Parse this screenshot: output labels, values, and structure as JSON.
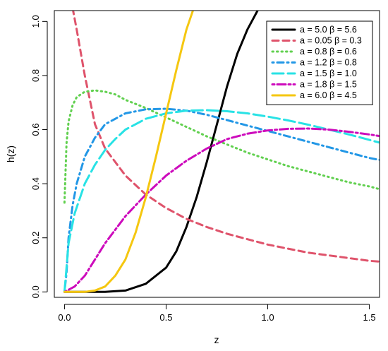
{
  "chart_data": {
    "type": "line",
    "xlabel": "z",
    "ylabel": "h(z)",
    "xlim": [
      -0.05,
      1.55
    ],
    "ylim": [
      0,
      1.0
    ],
    "x_ticks": [
      "0.0",
      "0.5",
      "1.0",
      "1.5"
    ],
    "y_ticks": [
      "0.0",
      "0.2",
      "0.4",
      "0.6",
      "0.8",
      "1.0"
    ],
    "grid": false,
    "legend_position": "top-right",
    "series": [
      {
        "name": "a = 5.0  β = 5.6",
        "color": "#000000",
        "dash": "solid",
        "x": [
          0.0,
          0.1,
          0.2,
          0.3,
          0.4,
          0.5,
          0.55,
          0.6,
          0.65,
          0.7,
          0.75,
          0.8,
          0.85,
          0.9,
          0.95,
          1.0
        ],
        "y": [
          0.0,
          0.0,
          0.0,
          0.005,
          0.03,
          0.09,
          0.15,
          0.24,
          0.35,
          0.48,
          0.62,
          0.76,
          0.88,
          0.97,
          1.04,
          1.1
        ]
      },
      {
        "name": "a = 0.05  β = 0.3",
        "color": "#df536b",
        "dash": "dashed",
        "x": [
          0.04,
          0.06,
          0.1,
          0.15,
          0.2,
          0.3,
          0.4,
          0.5,
          0.6,
          0.7,
          0.8,
          0.9,
          1.0,
          1.1,
          1.2,
          1.3,
          1.4,
          1.5,
          1.55
        ],
        "y": [
          1.05,
          0.97,
          0.8,
          0.62,
          0.53,
          0.43,
          0.36,
          0.31,
          0.27,
          0.24,
          0.215,
          0.195,
          0.175,
          0.16,
          0.145,
          0.135,
          0.125,
          0.115,
          0.112
        ]
      },
      {
        "name": "a = 0.8  β = 0.6",
        "color": "#61d04f",
        "dash": "dotted",
        "x": [
          0.0,
          0.01,
          0.02,
          0.04,
          0.06,
          0.1,
          0.15,
          0.2,
          0.25,
          0.3,
          0.4,
          0.5,
          0.6,
          0.7,
          0.8,
          0.9,
          1.0,
          1.1,
          1.2,
          1.3,
          1.4,
          1.5,
          1.55
        ],
        "y": [
          0.33,
          0.55,
          0.63,
          0.69,
          0.72,
          0.74,
          0.745,
          0.74,
          0.73,
          0.71,
          0.68,
          0.645,
          0.61,
          0.575,
          0.545,
          0.515,
          0.49,
          0.465,
          0.445,
          0.425,
          0.405,
          0.39,
          0.38
        ]
      },
      {
        "name": "a = 1.2  β = 0.8",
        "color": "#2297e6",
        "dash": "dotdash",
        "x": [
          0.0,
          0.01,
          0.02,
          0.04,
          0.06,
          0.1,
          0.15,
          0.2,
          0.3,
          0.4,
          0.5,
          0.6,
          0.7,
          0.8,
          0.9,
          1.0,
          1.1,
          1.2,
          1.3,
          1.4,
          1.5,
          1.55
        ],
        "y": [
          0.0,
          0.07,
          0.2,
          0.32,
          0.4,
          0.5,
          0.57,
          0.62,
          0.66,
          0.675,
          0.677,
          0.67,
          0.655,
          0.635,
          0.615,
          0.595,
          0.575,
          0.555,
          0.535,
          0.515,
          0.495,
          0.488
        ]
      },
      {
        "name": "a = 1.5  β = 1.0",
        "color": "#28e2e5",
        "dash": "longdash",
        "x": [
          0.0,
          0.02,
          0.05,
          0.1,
          0.15,
          0.2,
          0.25,
          0.3,
          0.4,
          0.5,
          0.6,
          0.7,
          0.8,
          0.9,
          1.0,
          1.1,
          1.2,
          1.3,
          1.4,
          1.5,
          1.55
        ],
        "y": [
          0.0,
          0.18,
          0.29,
          0.4,
          0.47,
          0.525,
          0.565,
          0.6,
          0.64,
          0.66,
          0.67,
          0.672,
          0.668,
          0.66,
          0.648,
          0.634,
          0.618,
          0.6,
          0.582,
          0.562,
          0.552
        ]
      },
      {
        "name": "a = 1.8  β = 1.5",
        "color": "#cd0bbc",
        "dash": "twodash",
        "x": [
          0.0,
          0.05,
          0.1,
          0.15,
          0.2,
          0.3,
          0.4,
          0.5,
          0.6,
          0.7,
          0.8,
          0.9,
          1.0,
          1.1,
          1.2,
          1.3,
          1.4,
          1.5,
          1.55
        ],
        "y": [
          0.0,
          0.02,
          0.06,
          0.12,
          0.18,
          0.28,
          0.36,
          0.43,
          0.485,
          0.53,
          0.565,
          0.585,
          0.597,
          0.603,
          0.604,
          0.6,
          0.592,
          0.582,
          0.576
        ]
      },
      {
        "name": "a = 6.0  β = 4.5",
        "color": "#f5c710",
        "dash": "solid",
        "x": [
          0.0,
          0.1,
          0.15,
          0.2,
          0.25,
          0.3,
          0.35,
          0.4,
          0.45,
          0.5,
          0.55,
          0.6,
          0.65
        ],
        "y": [
          0.0,
          0.0,
          0.005,
          0.02,
          0.06,
          0.12,
          0.22,
          0.35,
          0.5,
          0.66,
          0.82,
          0.97,
          1.08
        ]
      }
    ]
  }
}
